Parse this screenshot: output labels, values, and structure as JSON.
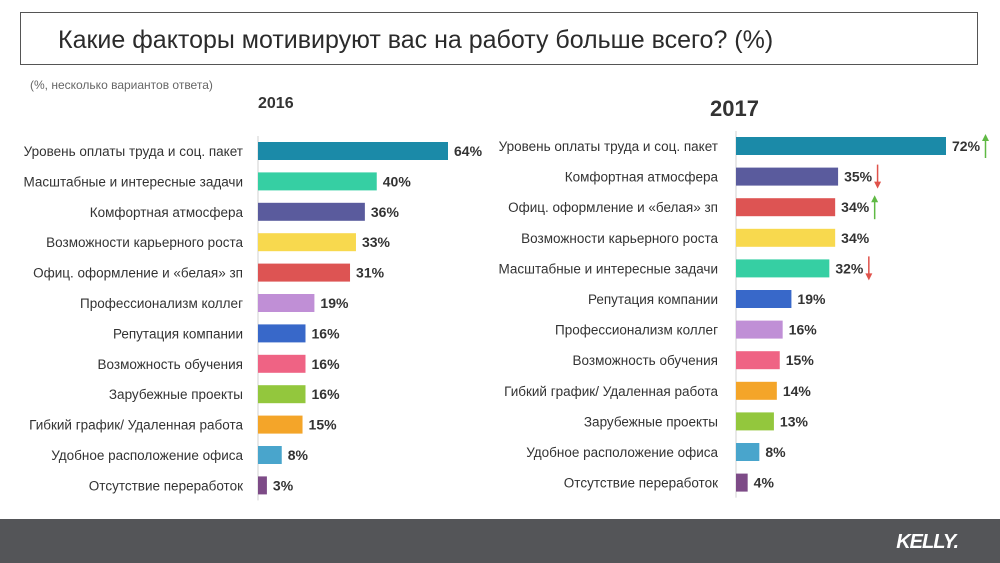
{
  "header": {
    "title": "Какие факторы мотивируют вас на работу больше всего? (%)",
    "subtitle": "(%, несколько вариантов ответа)"
  },
  "footer": {
    "logo": "KELLY."
  },
  "colors": {
    "teal": "#1b8aa8",
    "mint": "#36cfa3",
    "purple": "#5a5b9d",
    "yellow": "#f8d94e",
    "red": "#dd5453",
    "lavender": "#c08fd6",
    "blue": "#3868c9",
    "pink": "#ef6384",
    "green": "#93c73d",
    "orange": "#f4a529",
    "lightblue": "#49a5cc",
    "plum": "#7d4b87",
    "arrow_up": "#5fb944",
    "arrow_down": "#e0524a"
  },
  "chart_data": [
    {
      "type": "bar",
      "orientation": "horizontal",
      "title": "2016",
      "xlabel": "",
      "ylabel": "",
      "xlim": [
        0,
        100
      ],
      "categories": [
        "Уровень оплаты труда и соц. пакет",
        "Масштабные и интересные задачи",
        "Комфортная атмосфера",
        "Возможности карьерного роста",
        "Офиц. оформление и «белая» зп",
        "Профессионализм коллег",
        "Репутация компании",
        "Возможность обучения",
        "Зарубежные проекты",
        "Гибкий график/ Удаленная работа",
        "Удобное расположение офиса",
        "Отсутствие переработок"
      ],
      "values": [
        64,
        40,
        36,
        33,
        31,
        19,
        16,
        16,
        16,
        15,
        8,
        3
      ],
      "labels": [
        "64%",
        "40%",
        "36%",
        "33%",
        "31%",
        "19%",
        "16%",
        "16%",
        "16%",
        "15%",
        "8%",
        "3%"
      ],
      "colors": [
        "teal",
        "mint",
        "purple",
        "yellow",
        "red",
        "lavender",
        "blue",
        "pink",
        "green",
        "orange",
        "lightblue",
        "plum"
      ]
    },
    {
      "type": "bar",
      "orientation": "horizontal",
      "title": "2017",
      "xlabel": "",
      "ylabel": "",
      "xlim": [
        0,
        100
      ],
      "categories": [
        "Уровень оплаты труда и соц. пакет",
        "Комфортная атмосфера",
        "Офиц. оформление и «белая» зп",
        "Возможности карьерного роста",
        "Масштабные и интересные задачи",
        "Репутация компании",
        "Профессионализм коллег",
        "Возможность обучения",
        "Гибкий график/ Удаленная работа",
        "Зарубежные проекты",
        "Удобное расположение офиса",
        "Отсутствие переработок"
      ],
      "values": [
        72,
        35,
        34,
        34,
        32,
        19,
        16,
        15,
        14,
        13,
        8,
        4
      ],
      "labels": [
        "72%",
        "35%",
        "34%",
        "34%",
        "32%",
        "19%",
        "16%",
        "15%",
        "14%",
        "13%",
        "8%",
        "4%"
      ],
      "colors": [
        "teal",
        "purple",
        "red",
        "yellow",
        "mint",
        "blue",
        "lavender",
        "pink",
        "orange",
        "green",
        "lightblue",
        "plum"
      ],
      "trend": [
        "up",
        "down",
        "up",
        "",
        "down",
        "",
        "",
        "",
        "",
        "",
        "",
        ""
      ]
    }
  ]
}
